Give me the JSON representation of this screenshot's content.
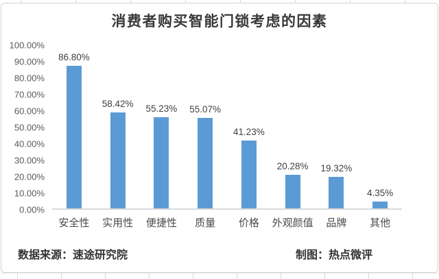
{
  "chart": {
    "title": "消费者购买智能门锁考虑的因素",
    "footer_left": "数据来源：速途研究院",
    "footer_right": "制图：热点微评"
  },
  "chart_data": {
    "type": "bar",
    "title": "消费者购买智能门锁考虑的因素",
    "categories": [
      "安全性",
      "实用性",
      "便捷性",
      "质量",
      "价格",
      "外观颜值",
      "品牌",
      "其他"
    ],
    "values": [
      86.8,
      58.42,
      55.23,
      55.07,
      41.23,
      20.28,
      19.32,
      4.35
    ],
    "data_labels": [
      "86.80%",
      "58.42%",
      "55.23%",
      "55.07%",
      "41.23%",
      "20.28%",
      "19.32%",
      "4.35%"
    ],
    "y_ticks": [
      "0.00%",
      "10.00%",
      "20.00%",
      "30.00%",
      "40.00%",
      "50.00%",
      "60.00%",
      "70.00%",
      "80.00%",
      "90.00%",
      "100.00%"
    ],
    "ylim": [
      0,
      100
    ],
    "xlabel": "",
    "ylabel": "",
    "grid": false,
    "legend": "none",
    "bar_color": "#5B9BD5",
    "source_note": "数据来源：速途研究院",
    "credit_note": "制图：热点微评"
  }
}
